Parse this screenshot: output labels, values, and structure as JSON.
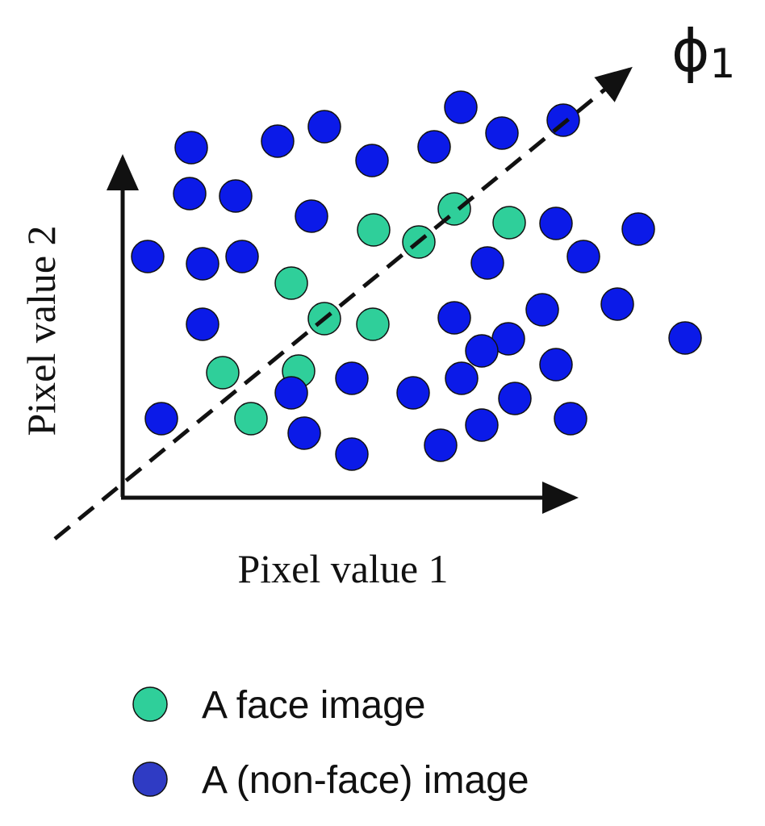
{
  "diagram": {
    "axis_label_y": "Pixel value 2",
    "axis_label_x": "Pixel value 1",
    "direction_label": {
      "symbol": "ϕ",
      "subscript": "1"
    },
    "legend": [
      "A face image",
      "A (non-face) image"
    ]
  }
}
